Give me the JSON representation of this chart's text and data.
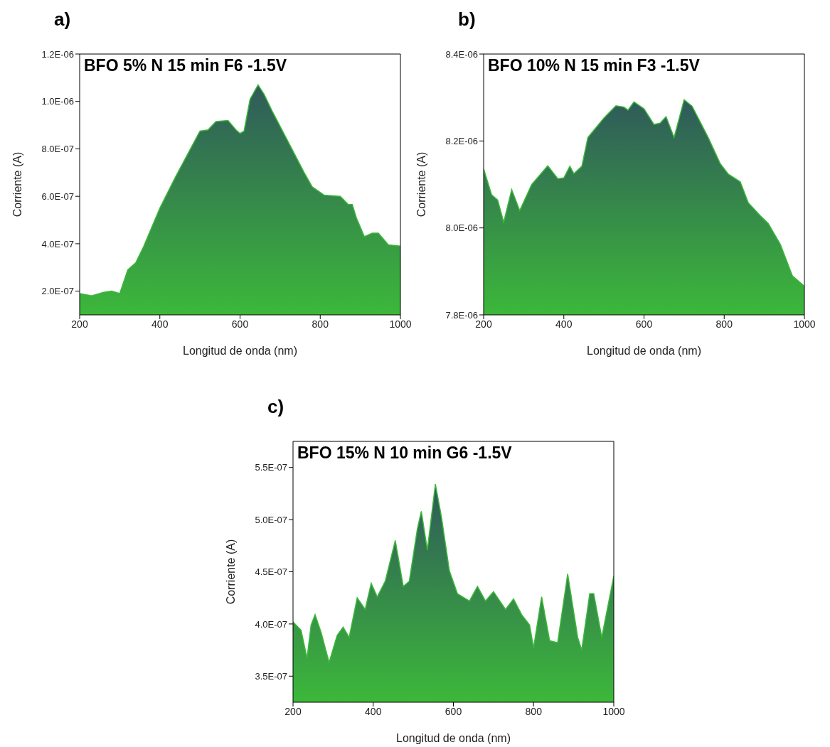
{
  "chart_data": [
    {
      "type": "area",
      "title": "BFO 5% N 15 min F6 -1.5V",
      "xlabel": "Longitud de onda (nm)",
      "ylabel": "Corriente (A)",
      "annotations": [
        "a)"
      ],
      "x": [
        200,
        230,
        260,
        280,
        300,
        320,
        340,
        360,
        380,
        400,
        440,
        470,
        500,
        520,
        540,
        570,
        590,
        600,
        610,
        625,
        645,
        660,
        680,
        720,
        760,
        780,
        810,
        850,
        870,
        880,
        890,
        910,
        930,
        945,
        970,
        1000
      ],
      "series": [
        {
          "color": "#3cb83a",
          "values": [
            1.9e-07,
            1.8e-07,
            1.95e-07,
            2e-07,
            1.9e-07,
            2.9e-07,
            3.2e-07,
            3.9e-07,
            4.7e-07,
            5.5e-07,
            6.85e-07,
            7.8e-07,
            8.75e-07,
            8.8e-07,
            9.15e-07,
            9.2e-07,
            8.8e-07,
            8.65e-07,
            8.75e-07,
            1.01e-06,
            1.07e-06,
            1.03e-06,
            9.6e-07,
            8.3e-07,
            7e-07,
            6.4e-07,
            6.05e-07,
            6e-07,
            5.65e-07,
            5.65e-07,
            5.1e-07,
            4.3e-07,
            4.45e-07,
            4.45e-07,
            3.95e-07,
            3.9e-07
          ]
        }
      ],
      "xlim": [
        200,
        1000
      ],
      "xticks": [
        200,
        400,
        600,
        800,
        1000
      ],
      "ylim": [
        1e-07,
        1.2e-06
      ],
      "yticks": [
        {
          "value": 2e-07,
          "label": "2.0E-07"
        },
        {
          "value": 4e-07,
          "label": "4.0E-07"
        },
        {
          "value": 6e-07,
          "label": "6.0E-07"
        },
        {
          "value": 8e-07,
          "label": "8.0E-07"
        },
        {
          "value": 1e-06,
          "label": "1.0E-06"
        },
        {
          "value": 1.2e-06,
          "label": "1.2E-06"
        }
      ]
    },
    {
      "type": "area",
      "title": "BFO 10% N 15 min F3 -1.5V",
      "xlabel": "Longitud de onda (nm)",
      "ylabel": "Corriente (A)",
      "annotations": [
        "b)"
      ],
      "x": [
        200,
        220,
        235,
        250,
        270,
        290,
        320,
        360,
        385,
        400,
        415,
        425,
        445,
        460,
        500,
        530,
        550,
        560,
        575,
        600,
        625,
        640,
        655,
        675,
        700,
        720,
        760,
        790,
        810,
        840,
        860,
        890,
        910,
        940,
        970,
        1000
      ],
      "series": [
        {
          "color": "#3cb83a",
          "values": [
            8.136e-06,
            8.076e-06,
            8.064e-06,
            8.013e-06,
            8.088e-06,
            8.04e-06,
            8.1e-06,
            8.143e-06,
            8.113e-06,
            8.115e-06,
            8.142e-06,
            8.125e-06,
            8.142e-06,
            8.208e-06,
            8.253e-06,
            8.281e-06,
            8.278e-06,
            8.271e-06,
            8.29e-06,
            8.274e-06,
            8.238e-06,
            8.241e-06,
            8.256e-06,
            8.208e-06,
            8.295e-06,
            8.28e-06,
            8.208e-06,
            8.148e-06,
            8.124e-06,
            8.106e-06,
            8.058e-06,
            8.028e-06,
            8.01e-06,
            7.962e-06,
            7.89e-06,
            7.866e-06
          ]
        }
      ],
      "xlim": [
        200,
        1000
      ],
      "xticks": [
        200,
        400,
        600,
        800,
        1000
      ],
      "ylim": [
        7.8e-06,
        8.4e-06
      ],
      "yticks": [
        {
          "value": 7.8e-06,
          "label": "7.8E-06"
        },
        {
          "value": 8e-06,
          "label": "8.0E-06"
        },
        {
          "value": 8.2e-06,
          "label": "8.2E-06"
        },
        {
          "value": 8.4e-06,
          "label": "8.4E-06"
        }
      ]
    },
    {
      "type": "area",
      "title": "BFO 15% N 10 min G6 -1.5V",
      "xlabel": "Longitud de onda (nm)",
      "ylabel": "Corriente (A)",
      "annotations": [
        "c)"
      ],
      "x": [
        200,
        220,
        235,
        245,
        255,
        270,
        290,
        310,
        325,
        340,
        360,
        380,
        395,
        410,
        430,
        455,
        475,
        490,
        510,
        520,
        535,
        555,
        570,
        590,
        610,
        640,
        660,
        680,
        700,
        730,
        750,
        770,
        790,
        800,
        820,
        840,
        860,
        885,
        910,
        920,
        940,
        950,
        970,
        1000
      ],
      "series": [
        {
          "color": "#3cb83a",
          "values": [
            4.02e-07,
            3.94e-07,
            3.67e-07,
            3.99e-07,
            4.09e-07,
            3.92e-07,
            3.63e-07,
            3.89e-07,
            3.97e-07,
            3.87e-07,
            4.25e-07,
            4.14e-07,
            4.39e-07,
            4.26e-07,
            4.41e-07,
            4.8e-07,
            4.36e-07,
            4.41e-07,
            4.91e-07,
            5.08e-07,
            4.71e-07,
            5.34e-07,
            5.03e-07,
            4.51e-07,
            4.29e-07,
            4.22e-07,
            4.36e-07,
            4.22e-07,
            4.31e-07,
            4.14e-07,
            4.24e-07,
            4.09e-07,
            3.99e-07,
            3.77e-07,
            4.26e-07,
            3.84e-07,
            3.82e-07,
            4.48e-07,
            3.87e-07,
            3.75e-07,
            4.29e-07,
            4.29e-07,
            3.87e-07,
            4.46e-07
          ]
        }
      ],
      "xlim": [
        200,
        1000
      ],
      "xticks": [
        200,
        400,
        600,
        800,
        1000
      ],
      "ylim": [
        3.25e-07,
        5.75e-07
      ],
      "yticks": [
        {
          "value": 3.5e-07,
          "label": "3.5E-07"
        },
        {
          "value": 4e-07,
          "label": "4.0E-07"
        },
        {
          "value": 4.5e-07,
          "label": "4.5E-07"
        },
        {
          "value": 5e-07,
          "label": "5.0E-07"
        },
        {
          "value": 5.5e-07,
          "label": "5.5E-07"
        }
      ]
    }
  ]
}
